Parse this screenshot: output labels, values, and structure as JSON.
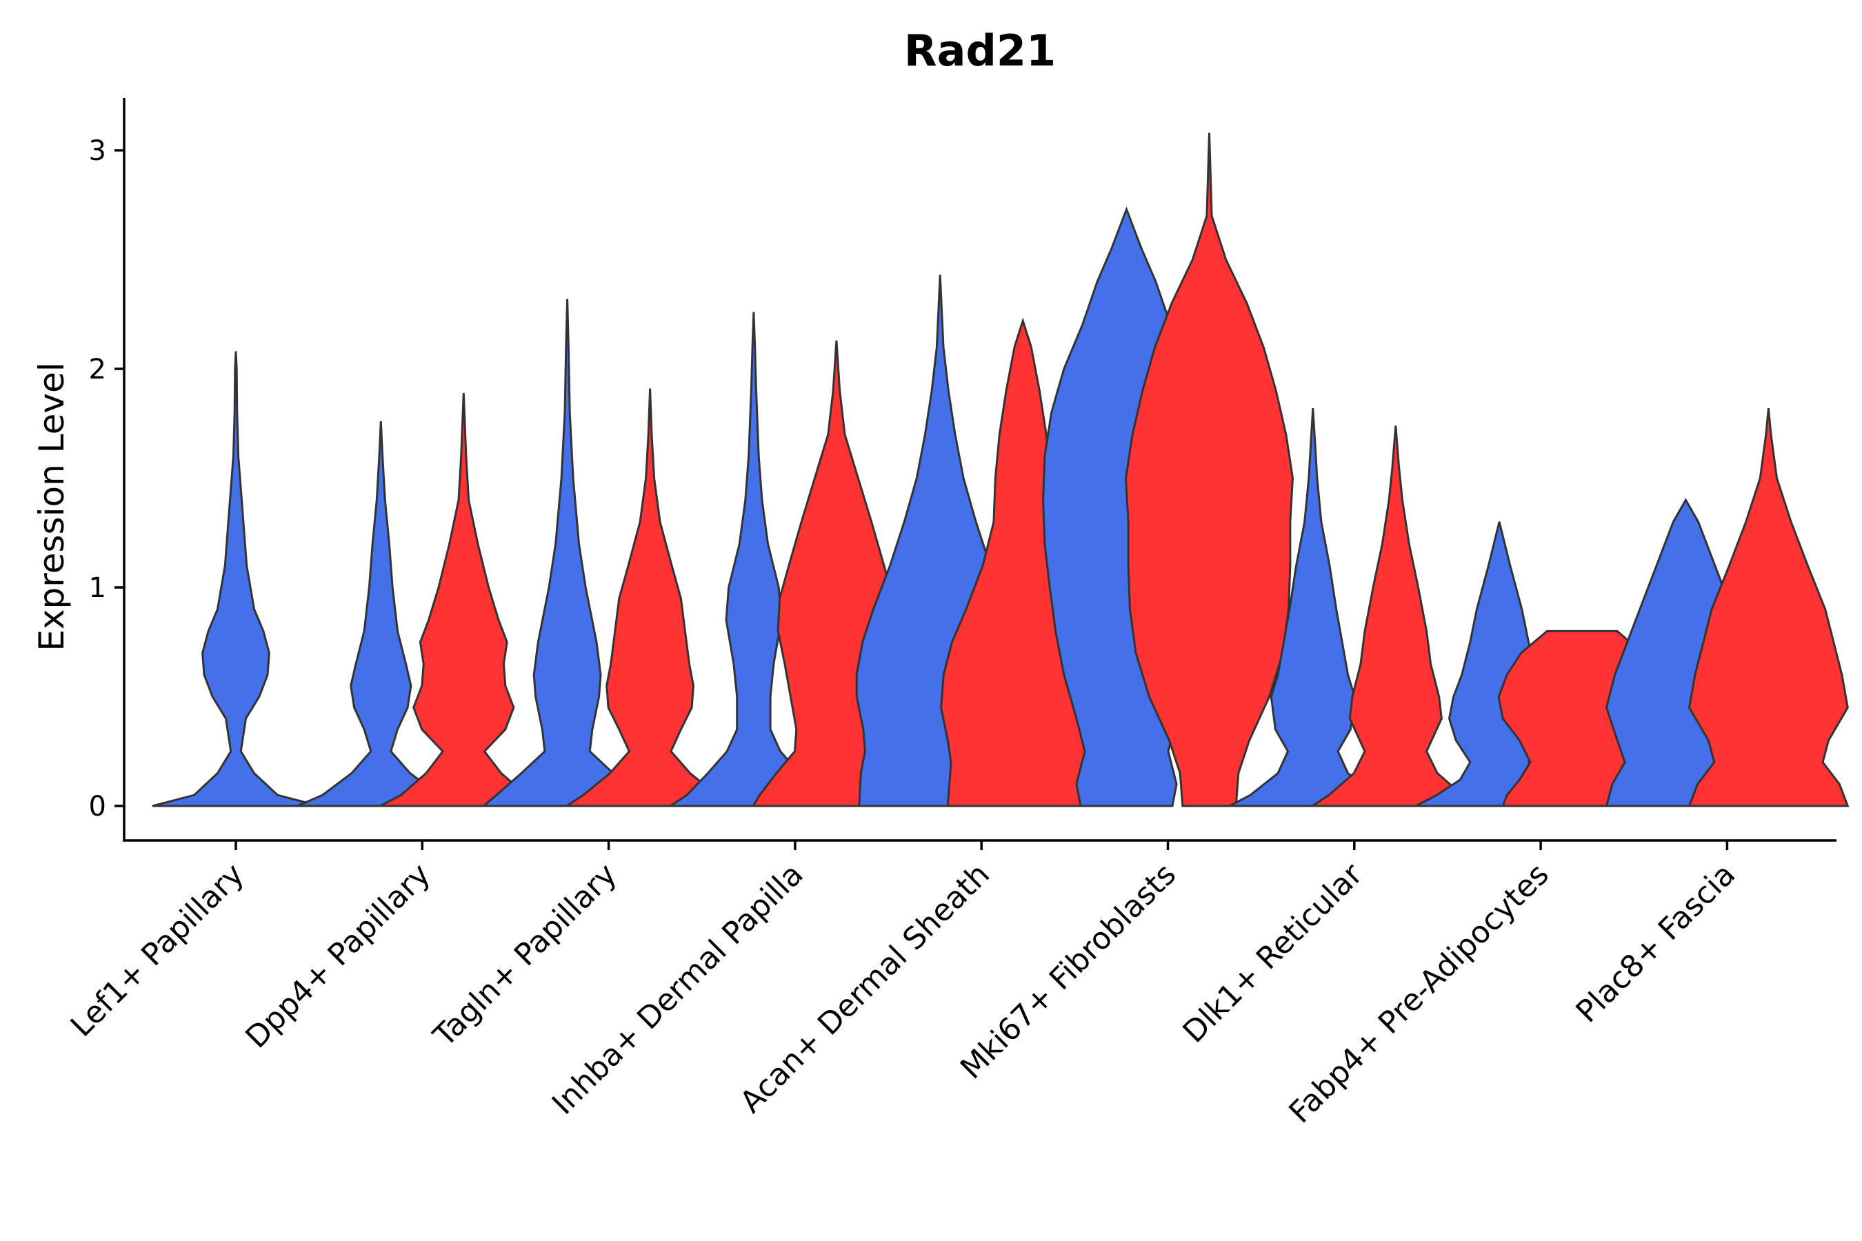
{
  "chart_data": {
    "type": "violin",
    "title": "Rad21",
    "xlabel": "",
    "ylabel": "Expression Level",
    "ylim": [
      -0.15,
      3.25
    ],
    "yticks": [
      0,
      1,
      2,
      3
    ],
    "categories": [
      "Lef1+ Papillary",
      "Dpp4+ Papillary",
      "Tagln+ Papillary",
      "Inhba+ Dermal Papilla",
      "Acan+ Dermal Sheath",
      "Mki67+ Fibroblasts",
      "Dlk1+ Reticular",
      "Fabp4+ Pre-Adipocytes",
      "Plac8+ Fascia"
    ],
    "colors": {
      "group1": "#4470EA",
      "group2": "#FF3333",
      "outline": "#333333"
    },
    "violins": [
      {
        "category": "Lef1+ Papillary",
        "group": "group1",
        "color": "#4470EA",
        "profile": [
          [
            0,
            1.0
          ],
          [
            0.05,
            0.5
          ],
          [
            0.15,
            0.22
          ],
          [
            0.25,
            0.06
          ],
          [
            0.4,
            0.12
          ],
          [
            0.5,
            0.28
          ],
          [
            0.6,
            0.38
          ],
          [
            0.7,
            0.4
          ],
          [
            0.8,
            0.33
          ],
          [
            0.9,
            0.22
          ],
          [
            1.1,
            0.13
          ],
          [
            1.4,
            0.07
          ],
          [
            1.6,
            0.03
          ],
          [
            1.8,
            0.015
          ],
          [
            2.0,
            0.01
          ],
          [
            2.08,
            0
          ]
        ]
      },
      {
        "category": "Dpp4+ Papillary",
        "group": "group1",
        "color": "#4470EA",
        "profile": [
          [
            0,
            1.0
          ],
          [
            0.05,
            0.7
          ],
          [
            0.15,
            0.35
          ],
          [
            0.25,
            0.12
          ],
          [
            0.35,
            0.2
          ],
          [
            0.45,
            0.32
          ],
          [
            0.55,
            0.36
          ],
          [
            0.65,
            0.3
          ],
          [
            0.8,
            0.2
          ],
          [
            1.0,
            0.14
          ],
          [
            1.2,
            0.1
          ],
          [
            1.4,
            0.05
          ],
          [
            1.6,
            0.02
          ],
          [
            1.76,
            0
          ]
        ]
      },
      {
        "category": "Dpp4+ Papillary",
        "group": "group2",
        "color": "#FF3333",
        "profile": [
          [
            0,
            1.0
          ],
          [
            0.05,
            0.75
          ],
          [
            0.15,
            0.45
          ],
          [
            0.25,
            0.25
          ],
          [
            0.35,
            0.5
          ],
          [
            0.45,
            0.6
          ],
          [
            0.55,
            0.5
          ],
          [
            0.65,
            0.48
          ],
          [
            0.75,
            0.52
          ],
          [
            0.85,
            0.42
          ],
          [
            1.0,
            0.3
          ],
          [
            1.2,
            0.17
          ],
          [
            1.4,
            0.06
          ],
          [
            1.6,
            0.03
          ],
          [
            1.89,
            0
          ]
        ]
      },
      {
        "category": "Tagln+ Papillary",
        "group": "group1",
        "color": "#4470EA",
        "profile": [
          [
            0,
            1.0
          ],
          [
            0.05,
            0.85
          ],
          [
            0.15,
            0.55
          ],
          [
            0.25,
            0.27
          ],
          [
            0.35,
            0.3
          ],
          [
            0.5,
            0.38
          ],
          [
            0.6,
            0.4
          ],
          [
            0.75,
            0.35
          ],
          [
            1.0,
            0.22
          ],
          [
            1.2,
            0.14
          ],
          [
            1.5,
            0.07
          ],
          [
            1.8,
            0.03
          ],
          [
            2.1,
            0.015
          ],
          [
            2.32,
            0
          ]
        ]
      },
      {
        "category": "Tagln+ Papillary",
        "group": "group2",
        "color": "#FF3333",
        "profile": [
          [
            0,
            1.0
          ],
          [
            0.05,
            0.8
          ],
          [
            0.15,
            0.48
          ],
          [
            0.25,
            0.25
          ],
          [
            0.35,
            0.37
          ],
          [
            0.45,
            0.5
          ],
          [
            0.55,
            0.52
          ],
          [
            0.65,
            0.47
          ],
          [
            0.8,
            0.42
          ],
          [
            0.95,
            0.37
          ],
          [
            1.1,
            0.26
          ],
          [
            1.3,
            0.12
          ],
          [
            1.5,
            0.05
          ],
          [
            1.7,
            0.02
          ],
          [
            1.91,
            0
          ]
        ]
      },
      {
        "category": "Inhba+ Dermal Papilla",
        "group": "group1",
        "color": "#4470EA",
        "profile": [
          [
            0,
            1.0
          ],
          [
            0.05,
            0.8
          ],
          [
            0.15,
            0.55
          ],
          [
            0.25,
            0.32
          ],
          [
            0.35,
            0.2
          ],
          [
            0.5,
            0.2
          ],
          [
            0.65,
            0.24
          ],
          [
            0.85,
            0.33
          ],
          [
            1.0,
            0.3
          ],
          [
            1.2,
            0.17
          ],
          [
            1.4,
            0.1
          ],
          [
            1.6,
            0.06
          ],
          [
            1.9,
            0.03
          ],
          [
            2.1,
            0.015
          ],
          [
            2.26,
            0
          ]
        ]
      },
      {
        "category": "Inhba+ Dermal Papilla",
        "group": "group2",
        "color": "#FF3333",
        "profile": [
          [
            0,
            1.0
          ],
          [
            0.05,
            0.92
          ],
          [
            0.15,
            0.72
          ],
          [
            0.25,
            0.5
          ],
          [
            0.35,
            0.48
          ],
          [
            0.5,
            0.55
          ],
          [
            0.65,
            0.62
          ],
          [
            0.8,
            0.7
          ],
          [
            0.95,
            0.68
          ],
          [
            1.1,
            0.57
          ],
          [
            1.3,
            0.42
          ],
          [
            1.5,
            0.26
          ],
          [
            1.7,
            0.1
          ],
          [
            1.9,
            0.04
          ],
          [
            2.13,
            0
          ]
        ]
      },
      {
        "category": "Acan+ Dermal Sheath",
        "group": "group1",
        "color": "#4470EA",
        "profile": [
          [
            0,
            0.97
          ],
          [
            0.15,
            0.95
          ],
          [
            0.25,
            0.9
          ],
          [
            0.35,
            0.92
          ],
          [
            0.5,
            1.0
          ],
          [
            0.6,
            1.0
          ],
          [
            0.75,
            0.93
          ],
          [
            0.9,
            0.8
          ],
          [
            1.1,
            0.6
          ],
          [
            1.3,
            0.43
          ],
          [
            1.5,
            0.28
          ],
          [
            1.7,
            0.18
          ],
          [
            1.9,
            0.1
          ],
          [
            2.1,
            0.04
          ],
          [
            2.43,
            0
          ]
        ]
      },
      {
        "category": "Acan+ Dermal Sheath",
        "group": "group2",
        "color": "#FF3333",
        "profile": [
          [
            0,
            0.9
          ],
          [
            0.1,
            0.88
          ],
          [
            0.2,
            0.86
          ],
          [
            0.3,
            0.9
          ],
          [
            0.45,
            0.98
          ],
          [
            0.6,
            0.95
          ],
          [
            0.75,
            0.85
          ],
          [
            0.9,
            0.68
          ],
          [
            1.1,
            0.48
          ],
          [
            1.3,
            0.35
          ],
          [
            1.5,
            0.33
          ],
          [
            1.7,
            0.28
          ],
          [
            1.9,
            0.2
          ],
          [
            2.1,
            0.1
          ],
          [
            2.22,
            0
          ]
        ]
      },
      {
        "category": "Mki67+ Fibroblasts",
        "group": "group1",
        "color": "#4470EA",
        "profile": [
          [
            0,
            0.55
          ],
          [
            0.1,
            0.6
          ],
          [
            0.25,
            0.5
          ],
          [
            0.4,
            0.6
          ],
          [
            0.6,
            0.75
          ],
          [
            0.8,
            0.85
          ],
          [
            1.0,
            0.92
          ],
          [
            1.2,
            0.98
          ],
          [
            1.4,
            1.0
          ],
          [
            1.6,
            0.98
          ],
          [
            1.8,
            0.9
          ],
          [
            2.0,
            0.75
          ],
          [
            2.2,
            0.53
          ],
          [
            2.4,
            0.35
          ],
          [
            2.55,
            0.18
          ],
          [
            2.73,
            0
          ]
        ]
      },
      {
        "category": "Mki67+ Fibroblasts",
        "group": "group2",
        "color": "#FF3333",
        "profile": [
          [
            0,
            0.32
          ],
          [
            0.15,
            0.35
          ],
          [
            0.3,
            0.48
          ],
          [
            0.5,
            0.72
          ],
          [
            0.7,
            0.88
          ],
          [
            0.9,
            0.95
          ],
          [
            1.1,
            0.97
          ],
          [
            1.3,
            0.97
          ],
          [
            1.5,
            1.0
          ],
          [
            1.7,
            0.92
          ],
          [
            1.9,
            0.8
          ],
          [
            2.1,
            0.65
          ],
          [
            2.3,
            0.45
          ],
          [
            2.5,
            0.2
          ],
          [
            2.7,
            0.03
          ],
          [
            3.08,
            0
          ]
        ]
      },
      {
        "category": "Dlk1+ Reticular",
        "group": "group1",
        "color": "#4470EA",
        "profile": [
          [
            0,
            1.0
          ],
          [
            0.05,
            0.75
          ],
          [
            0.15,
            0.42
          ],
          [
            0.25,
            0.3
          ],
          [
            0.35,
            0.45
          ],
          [
            0.5,
            0.5
          ],
          [
            0.6,
            0.42
          ],
          [
            0.75,
            0.35
          ],
          [
            0.9,
            0.28
          ],
          [
            1.1,
            0.2
          ],
          [
            1.3,
            0.1
          ],
          [
            1.5,
            0.05
          ],
          [
            1.82,
            0
          ]
        ]
      },
      {
        "category": "Dlk1+ Reticular",
        "group": "group2",
        "color": "#FF3333",
        "profile": [
          [
            0,
            1.0
          ],
          [
            0.05,
            0.8
          ],
          [
            0.15,
            0.5
          ],
          [
            0.25,
            0.37
          ],
          [
            0.4,
            0.55
          ],
          [
            0.5,
            0.52
          ],
          [
            0.65,
            0.42
          ],
          [
            0.8,
            0.37
          ],
          [
            1.0,
            0.27
          ],
          [
            1.2,
            0.16
          ],
          [
            1.4,
            0.08
          ],
          [
            1.55,
            0.04
          ],
          [
            1.74,
            0
          ]
        ]
      },
      {
        "category": "Fabp4+ Pre-Adipocytes",
        "group": "group1",
        "color": "#4470EA",
        "profile": [
          [
            0,
            1.0
          ],
          [
            0.05,
            0.75
          ],
          [
            0.12,
            0.47
          ],
          [
            0.2,
            0.35
          ],
          [
            0.3,
            0.52
          ],
          [
            0.4,
            0.6
          ],
          [
            0.5,
            0.55
          ],
          [
            0.6,
            0.45
          ],
          [
            0.75,
            0.35
          ],
          [
            0.9,
            0.27
          ],
          [
            1.1,
            0.13
          ],
          [
            1.3,
            0
          ]
        ]
      },
      {
        "category": "Fabp4+ Pre-Adipocytes",
        "group": "group2",
        "color": "#FF3333",
        "profile": [
          [
            0,
            0.95
          ],
          [
            0.05,
            0.9
          ],
          [
            0.12,
            0.75
          ],
          [
            0.2,
            0.62
          ],
          [
            0.3,
            0.75
          ],
          [
            0.4,
            0.95
          ],
          [
            0.5,
            1.0
          ],
          [
            0.6,
            0.9
          ],
          [
            0.7,
            0.73
          ],
          [
            0.8,
            0.42
          ],
          [
            0.8,
            0
          ]
        ]
      },
      {
        "category": "Plac8+ Fascia",
        "group": "group1",
        "color": "#4470EA",
        "profile": [
          [
            0,
            0.95
          ],
          [
            0.1,
            0.88
          ],
          [
            0.2,
            0.73
          ],
          [
            0.3,
            0.82
          ],
          [
            0.45,
            0.95
          ],
          [
            0.6,
            0.85
          ],
          [
            0.75,
            0.7
          ],
          [
            0.9,
            0.55
          ],
          [
            1.1,
            0.35
          ],
          [
            1.3,
            0.15
          ],
          [
            1.4,
            0
          ]
        ]
      },
      {
        "category": "Plac8+ Fascia",
        "group": "group2",
        "color": "#FF3333",
        "profile": [
          [
            0,
            0.95
          ],
          [
            0.1,
            0.85
          ],
          [
            0.2,
            0.65
          ],
          [
            0.3,
            0.72
          ],
          [
            0.45,
            0.95
          ],
          [
            0.6,
            0.88
          ],
          [
            0.75,
            0.78
          ],
          [
            0.9,
            0.68
          ],
          [
            1.1,
            0.47
          ],
          [
            1.3,
            0.27
          ],
          [
            1.5,
            0.1
          ],
          [
            1.7,
            0.03
          ],
          [
            1.82,
            0
          ]
        ]
      }
    ]
  }
}
